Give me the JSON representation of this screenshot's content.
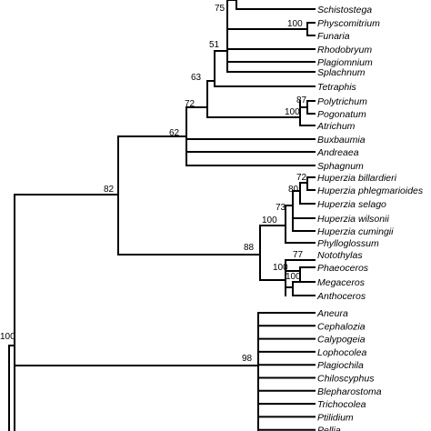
{
  "taxa": [
    {
      "id": "t_schistostega",
      "label": "Schistostega"
    },
    {
      "id": "t_physcomitrium",
      "label": "Physcomitrium"
    },
    {
      "id": "t_funaria",
      "label": "Funaria"
    },
    {
      "id": "t_rhodobryum",
      "label": "Rhodobryum"
    },
    {
      "id": "t_plagiomnium",
      "label": "Plagiomnium"
    },
    {
      "id": "t_splachnum",
      "label": "Splachnum"
    },
    {
      "id": "t_tetraphis",
      "label": "Tetraphis"
    },
    {
      "id": "t_polytrichum",
      "label": "Polytrichum"
    },
    {
      "id": "t_pogonatum",
      "label": "Pogonatum"
    },
    {
      "id": "t_atrichum",
      "label": "Atrichum"
    },
    {
      "id": "t_buxbaumia",
      "label": "Buxbaumia"
    },
    {
      "id": "t_andreaea",
      "label": "Andreaea"
    },
    {
      "id": "t_sphagnum",
      "label": "Sphagnum"
    },
    {
      "id": "t_huperzia_billardieri",
      "label": "Huperzia billardieri"
    },
    {
      "id": "t_huperzia_phlegmarioides",
      "label": "Huperzia phlegmarioides"
    },
    {
      "id": "t_huperzia_selago",
      "label": "Huperzia selago"
    },
    {
      "id": "t_huperzia_wilsonii",
      "label": "Huperzia wilsonii"
    },
    {
      "id": "t_huperzia_cumingii",
      "label": "Huperzia cumingii"
    },
    {
      "id": "t_phylloglossum",
      "label": "Phylloglossum"
    },
    {
      "id": "t_notothylas",
      "label": "Notothylas"
    },
    {
      "id": "t_phaeoceros",
      "label": "Phaeoceros"
    },
    {
      "id": "t_megaceros",
      "label": "Megaceros"
    },
    {
      "id": "t_anthoceros",
      "label": "Anthoceros"
    },
    {
      "id": "t_aneura",
      "label": "Aneura"
    },
    {
      "id": "t_cephalozia",
      "label": "Cephalozia"
    },
    {
      "id": "t_calypogeia",
      "label": "Calypogeia"
    },
    {
      "id": "t_lophocolea",
      "label": "Lophocolea"
    },
    {
      "id": "t_plagiochila",
      "label": "Plagiochila"
    },
    {
      "id": "t_chiloscyphus",
      "label": "Chiloscyphus"
    },
    {
      "id": "t_blepharostoma",
      "label": "Blepharostoma"
    },
    {
      "id": "t_trichocolea",
      "label": "Trichocolea"
    },
    {
      "id": "t_ptilidium",
      "label": "Ptilidium"
    },
    {
      "id": "t_pellia",
      "label": "Pellia"
    }
  ],
  "support_values": [
    {
      "id": "s_root",
      "value": "100"
    },
    {
      "id": "s_82",
      "value": "82"
    },
    {
      "id": "s_62",
      "value": "62"
    },
    {
      "id": "s_72",
      "value": "72"
    },
    {
      "id": "s_63",
      "value": "63"
    },
    {
      "id": "s_51",
      "value": "51"
    },
    {
      "id": "s_75",
      "value": "75"
    },
    {
      "id": "s_100_physco",
      "value": "100"
    },
    {
      "id": "s_87",
      "value": "87"
    },
    {
      "id": "s_100_poly",
      "value": "100"
    },
    {
      "id": "s_88",
      "value": "88"
    },
    {
      "id": "s_100_lyco",
      "value": "100"
    },
    {
      "id": "s_73",
      "value": "73"
    },
    {
      "id": "s_80",
      "value": "80"
    },
    {
      "id": "s_72_hup",
      "value": "72"
    },
    {
      "id": "s_77",
      "value": "77"
    },
    {
      "id": "s_100_ant",
      "value": "100"
    },
    {
      "id": "s_100_mega",
      "value": "100"
    },
    {
      "id": "s_98",
      "value": "98"
    }
  ]
}
